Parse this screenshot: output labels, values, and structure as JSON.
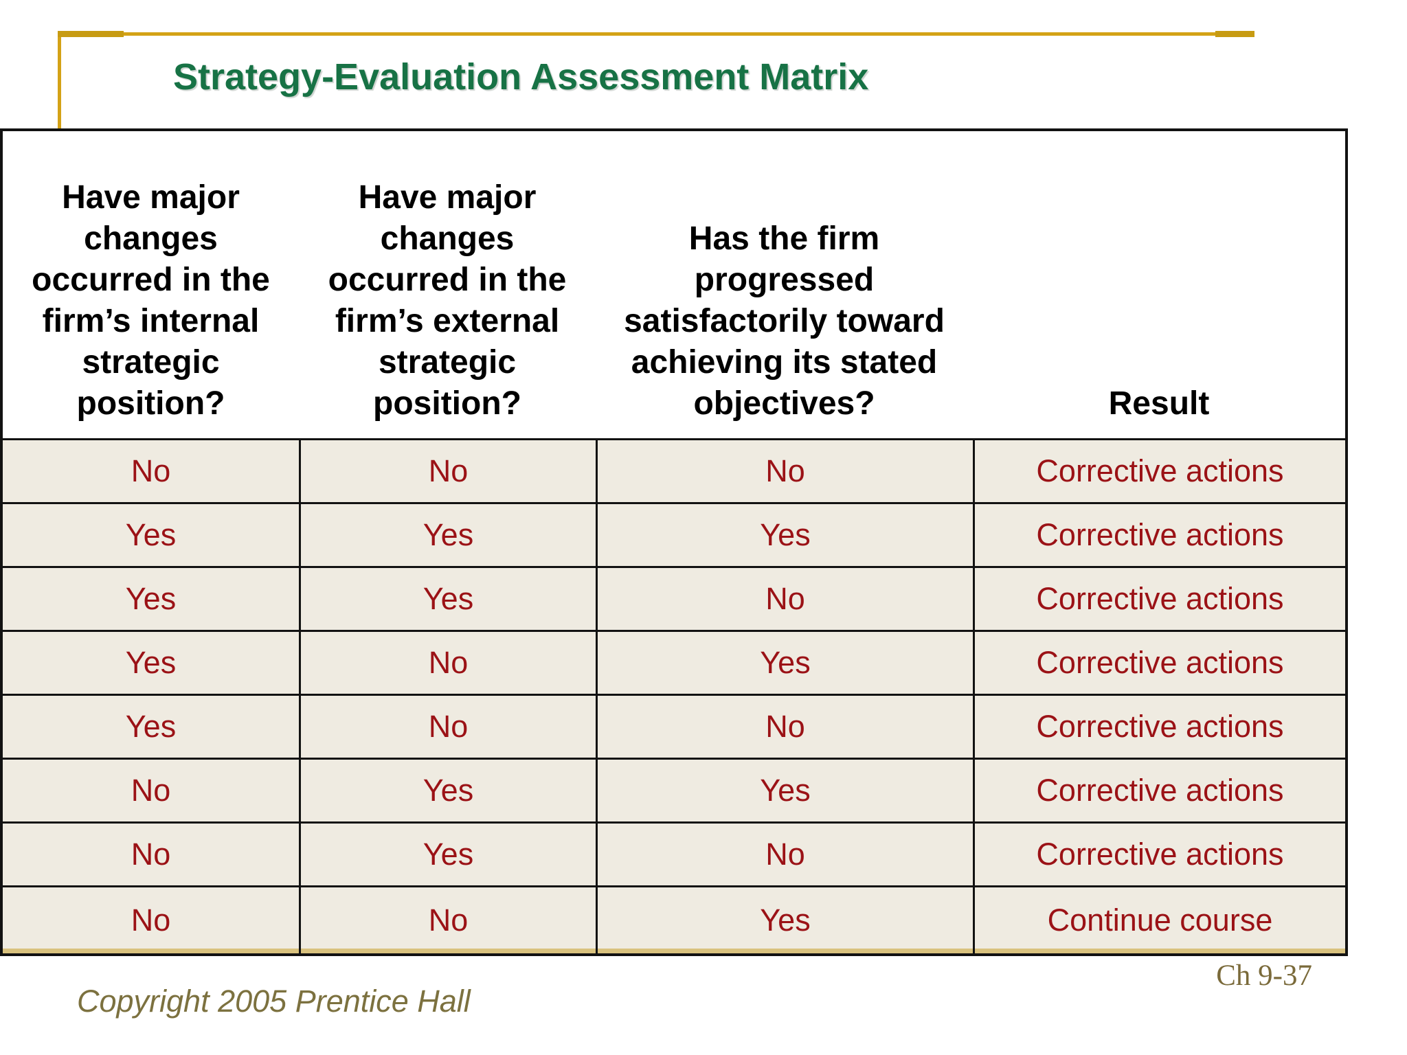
{
  "slide": {
    "title": "Strategy-Evaluation Assessment Matrix",
    "copyright": "Copyright 2005 Prentice Hall",
    "page_ref": "Ch 9-37"
  },
  "table": {
    "columns": [
      "Have major\nchanges\noccurred in the\nfirm’s internal\nstrategic\nposition?",
      "Have major\nchanges\noccurred in the\nfirm’s external\nstrategic\nposition?",
      "Has the firm\nprogressed\nsatisfactorily toward\nachieving its stated\nobjectives?",
      "Result"
    ],
    "rows": [
      [
        "No",
        "No",
        "No",
        "Corrective actions"
      ],
      [
        "Yes",
        "Yes",
        "Yes",
        "Corrective actions"
      ],
      [
        "Yes",
        "Yes",
        "No",
        "Corrective actions"
      ],
      [
        "Yes",
        "No",
        "Yes",
        "Corrective actions"
      ],
      [
        "Yes",
        "No",
        "No",
        "Corrective actions"
      ],
      [
        "No",
        "Yes",
        "Yes",
        "Corrective actions"
      ],
      [
        "No",
        "Yes",
        "No",
        "Corrective actions"
      ],
      [
        "No",
        "No",
        "Yes",
        "Continue course"
      ]
    ]
  },
  "colors": {
    "title_green": "#177245",
    "accent_gold": "#D4A216",
    "row_beige": "#EFEBE1",
    "cell_text_red": "#9B1216",
    "table_border": "#121212",
    "bottom_tan_line": "#D9C27E",
    "footer_olive": "#7C713F"
  }
}
